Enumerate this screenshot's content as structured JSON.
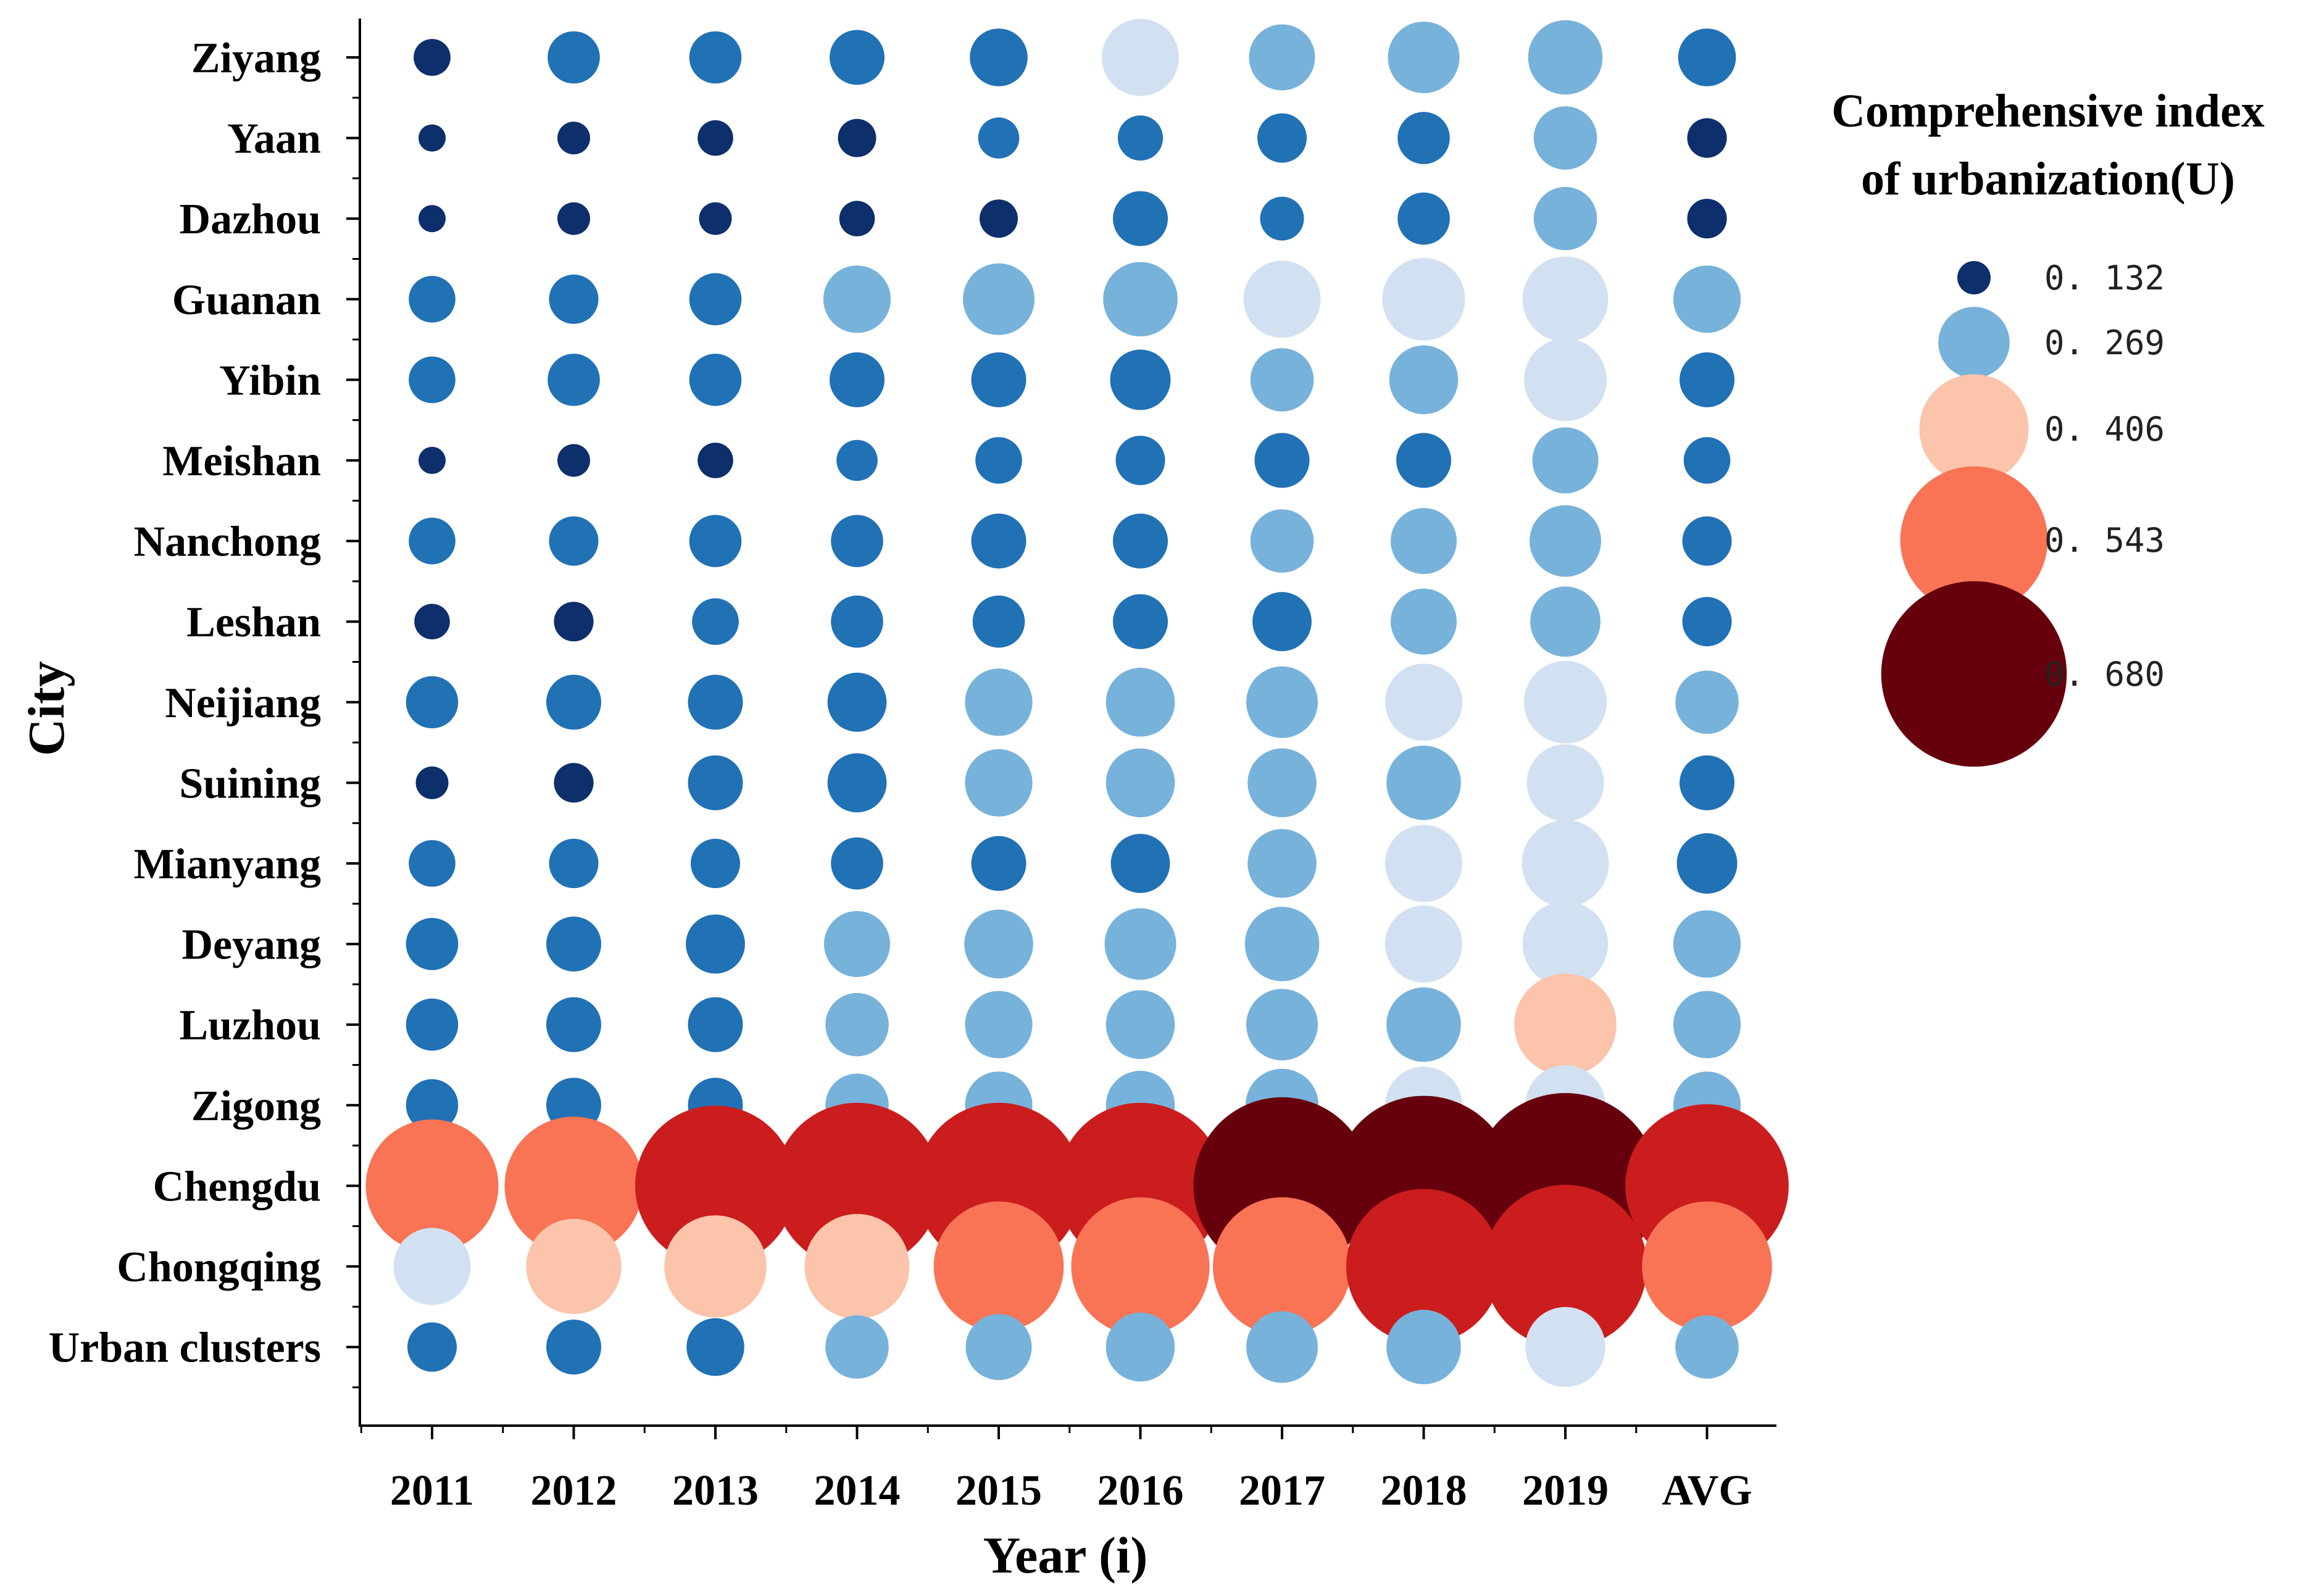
{
  "chart_data": {
    "type": "scatter",
    "subtype": "bubble-matrix",
    "title": "",
    "xlabel": "Year (i)",
    "ylabel": "City",
    "x_categories": [
      "2011",
      "2012",
      "2013",
      "2014",
      "2015",
      "2016",
      "2017",
      "2018",
      "2019",
      "AVG"
    ],
    "y_categories": [
      "Ziyang",
      "Yaan",
      "Dazhou",
      "Guanan",
      "Yibin",
      "Meishan",
      "Nanchong",
      "Leshan",
      "Neijiang",
      "Suining",
      "Mianyang",
      "Deyang",
      "Luzhou",
      "Zigong",
      "Chengdu",
      "Chongqing",
      "Urban clusters"
    ],
    "values": [
      [
        0.145,
        0.2,
        0.2,
        0.21,
        0.22,
        0.29,
        0.25,
        0.27,
        0.28,
        0.22
      ],
      [
        0.11,
        0.13,
        0.14,
        0.15,
        0.16,
        0.175,
        0.19,
        0.2,
        0.24,
        0.155
      ],
      [
        0.11,
        0.13,
        0.13,
        0.14,
        0.15,
        0.21,
        0.17,
        0.2,
        0.24,
        0.155
      ],
      [
        0.18,
        0.19,
        0.2,
        0.255,
        0.27,
        0.28,
        0.29,
        0.31,
        0.32,
        0.255
      ],
      [
        0.18,
        0.2,
        0.2,
        0.21,
        0.21,
        0.23,
        0.24,
        0.26,
        0.31,
        0.21
      ],
      [
        0.11,
        0.13,
        0.14,
        0.16,
        0.18,
        0.19,
        0.21,
        0.21,
        0.25,
        0.18
      ],
      [
        0.18,
        0.19,
        0.2,
        0.2,
        0.21,
        0.21,
        0.24,
        0.25,
        0.27,
        0.19
      ],
      [
        0.14,
        0.155,
        0.18,
        0.2,
        0.2,
        0.21,
        0.225,
        0.25,
        0.265,
        0.19
      ],
      [
        0.2,
        0.21,
        0.21,
        0.225,
        0.255,
        0.26,
        0.27,
        0.29,
        0.31,
        0.24
      ],
      [
        0.13,
        0.155,
        0.21,
        0.225,
        0.255,
        0.26,
        0.26,
        0.28,
        0.29,
        0.21
      ],
      [
        0.18,
        0.19,
        0.19,
        0.2,
        0.21,
        0.225,
        0.26,
        0.29,
        0.325,
        0.23
      ],
      [
        0.2,
        0.21,
        0.225,
        0.25,
        0.26,
        0.27,
        0.28,
        0.29,
        0.32,
        0.255
      ],
      [
        0.2,
        0.21,
        0.21,
        0.24,
        0.255,
        0.26,
        0.27,
        0.28,
        0.38,
        0.255
      ],
      [
        0.2,
        0.21,
        0.21,
        0.24,
        0.255,
        0.26,
        0.275,
        0.29,
        0.3,
        0.255
      ],
      [
        0.49,
        0.51,
        0.59,
        0.61,
        0.61,
        0.61,
        0.65,
        0.66,
        0.68,
        0.6
      ],
      [
        0.29,
        0.355,
        0.38,
        0.39,
        0.48,
        0.51,
        0.51,
        0.57,
        0.6,
        0.48
      ],
      [
        0.19,
        0.21,
        0.22,
        0.24,
        0.25,
        0.26,
        0.27,
        0.28,
        0.3,
        0.24
      ]
    ],
    "color_bins": [
      {
        "min": 0.0,
        "max": 0.16,
        "color": "#0d2f6b"
      },
      {
        "min": 0.16,
        "max": 0.235,
        "color": "#2171b5"
      },
      {
        "min": 0.235,
        "max": 0.285,
        "color": "#77b2db"
      },
      {
        "min": 0.285,
        "max": 0.345,
        "color": "#d2e1f1"
      },
      {
        "min": 0.345,
        "max": 0.43,
        "color": "#fbc4ab"
      },
      {
        "min": 0.43,
        "max": 0.56,
        "color": "#f97355"
      },
      {
        "min": 0.56,
        "max": 0.64,
        "color": "#cb1d1d"
      },
      {
        "min": 0.64,
        "max": 1.0,
        "color": "#67000d"
      }
    ],
    "legend": {
      "title_lines": [
        "Comprehensive index",
        "of urbanization(U)"
      ],
      "placement": "right",
      "entries": [
        {
          "label": "0. 132",
          "value": 0.132,
          "color": "#0d2f6b"
        },
        {
          "label": "0. 269",
          "value": 0.269,
          "color": "#77b2db"
        },
        {
          "label": "0. 406",
          "value": 0.406,
          "color": "#fbc4ab"
        },
        {
          "label": "0. 543",
          "value": 0.543,
          "color": "#f97355"
        },
        {
          "label": "0. 680",
          "value": 0.68,
          "color": "#67000d"
        }
      ]
    }
  }
}
